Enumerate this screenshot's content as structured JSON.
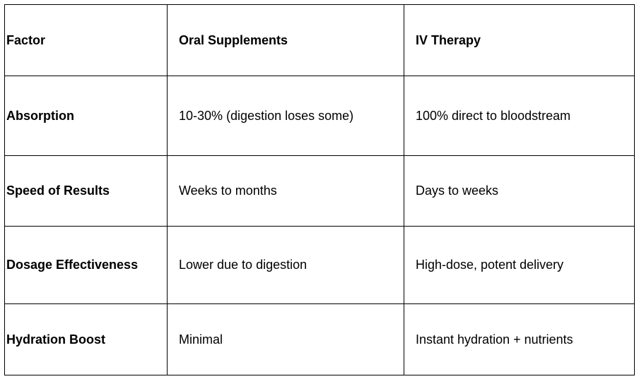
{
  "table": {
    "header": [
      "Factor",
      "Oral Supplements",
      "IV Therapy"
    ],
    "rows": [
      [
        "Absorption",
        "10-30% (digestion loses some)",
        "100% direct to bloodstream"
      ],
      [
        "Speed of Results",
        "Weeks to months",
        "Days to weeks"
      ],
      [
        "Dosage Effectiveness",
        "Lower due to digestion",
        "High-dose, potent delivery"
      ],
      [
        "Hydration Boost",
        "Minimal",
        "Instant hydration + nutrients"
      ]
    ]
  }
}
